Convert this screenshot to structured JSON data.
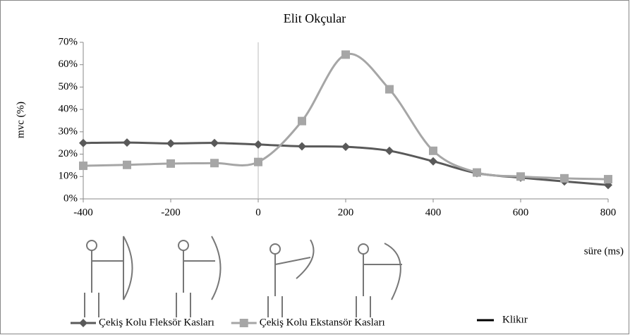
{
  "chart_data": {
    "type": "line",
    "title": "Elit Okçular",
    "ylabel": "mvc (%)",
    "xlabel": "süre (ms)",
    "x": [
      -400,
      -300,
      -200,
      -100,
      0,
      100,
      200,
      300,
      400,
      500,
      600,
      700,
      800
    ],
    "series": [
      {
        "name": "Çekiş Kolu Fleksör Kasları",
        "color": "#595959",
        "marker": "diamond",
        "values": [
          25,
          25.2,
          24.8,
          25,
          24.3,
          23.5,
          23.3,
          21.5,
          16.8,
          11.5,
          9.5,
          7.8,
          6.2
        ]
      },
      {
        "name": "Çekiş Kolu Ekstansör Kasları",
        "color": "#a6a6a6",
        "marker": "square",
        "values": [
          14.8,
          15.2,
          15.8,
          16,
          16.5,
          34.8,
          64.5,
          49,
          21.5,
          11.8,
          10,
          9.2,
          8.8
        ]
      }
    ],
    "marker_line": {
      "name": "Klikır",
      "x": 0,
      "color": "#000000"
    },
    "xlim": [
      -400,
      800
    ],
    "xticks": [
      -400,
      -200,
      0,
      200,
      400,
      600,
      800
    ],
    "ylim": [
      0,
      70
    ],
    "yticks": [
      {
        "value": 0,
        "label": "0%"
      },
      {
        "value": 10,
        "label": "10%"
      },
      {
        "value": 20,
        "label": "20%"
      },
      {
        "value": 30,
        "label": "30%"
      },
      {
        "value": 40,
        "label": "40%"
      },
      {
        "value": 50,
        "label": "50%"
      },
      {
        "value": 60,
        "label": "60%"
      },
      {
        "value": 70,
        "label": "70%"
      }
    ],
    "grid": false
  }
}
